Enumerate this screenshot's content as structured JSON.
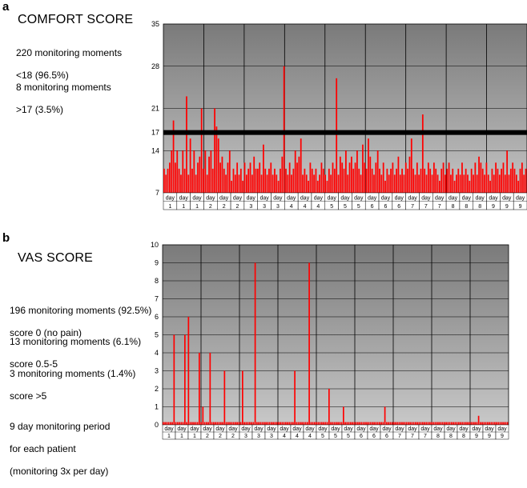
{
  "panel_a": {
    "letter": "a",
    "title": "COMFORT SCORE",
    "stat1_line1": "220 monitoring moments",
    "stat1_line2": "<18 (96.5%)",
    "stat2_line1": "8 monitoring moments",
    "stat2_line2": ">17 (3.5%)"
  },
  "panel_b": {
    "letter": "b",
    "title": "VAS SCORE",
    "stat1_line1": "196 monitoring moments (92.5%)",
    "stat1_line2": "score 0 (no pain)",
    "stat2_line1": "13 monitoring moments (6.1%)",
    "stat2_line2": "score 0.5-5",
    "stat3_line1": "3 monitoring moments (1.4%)",
    "stat3_line2": "score >5",
    "footer_line1": "9 day monitoring period",
    "footer_line2": "for each patient",
    "footer_line3": "(monitoring 3x per day)"
  },
  "chart_data": [
    {
      "type": "bar",
      "title": "COMFORT SCORE",
      "ylim": [
        7,
        35
      ],
      "yticks": [
        7,
        14,
        17,
        21,
        28,
        35
      ],
      "threshold": 17,
      "bar_color": "#ff0000",
      "threshold_color": "#000000",
      "grid": true,
      "day_groups": 9,
      "x_tick_labels": [
        {
          "day": "day",
          "num": "1"
        },
        {
          "day": "day",
          "num": "1"
        },
        {
          "day": "day",
          "num": "1"
        },
        {
          "day": "day",
          "num": "2"
        },
        {
          "day": "day",
          "num": "2"
        },
        {
          "day": "day",
          "num": "2"
        },
        {
          "day": "day",
          "num": "3"
        },
        {
          "day": "day",
          "num": "3"
        },
        {
          "day": "day",
          "num": "3"
        },
        {
          "day": "day",
          "num": "4"
        },
        {
          "day": "day",
          "num": "4"
        },
        {
          "day": "day",
          "num": "4"
        },
        {
          "day": "day",
          "num": "5"
        },
        {
          "day": "day",
          "num": "5"
        },
        {
          "day": "day",
          "num": "5"
        },
        {
          "day": "day",
          "num": "6"
        },
        {
          "day": "day",
          "num": "6"
        },
        {
          "day": "day",
          "num": "6"
        },
        {
          "day": "day",
          "num": "7"
        },
        {
          "day": "day",
          "num": "7"
        },
        {
          "day": "day",
          "num": "7"
        },
        {
          "day": "day",
          "num": "8"
        },
        {
          "day": "day",
          "num": "8"
        },
        {
          "day": "day",
          "num": "8"
        },
        {
          "day": "day",
          "num": "9"
        },
        {
          "day": "day",
          "num": "9"
        },
        {
          "day": "day",
          "num": "9"
        }
      ],
      "values": [
        11,
        10,
        11,
        12,
        14,
        19,
        12,
        14,
        11,
        10,
        14,
        11,
        23,
        10,
        16,
        11,
        14,
        10,
        12,
        13,
        21,
        11,
        14,
        10,
        13,
        14,
        11,
        21,
        18,
        16,
        12,
        13,
        11,
        10,
        12,
        14,
        9,
        11,
        10,
        12,
        10,
        11,
        9,
        12,
        10,
        11,
        12,
        10,
        13,
        11,
        11,
        12,
        10,
        15,
        11,
        10,
        11,
        12,
        10,
        11,
        10,
        9,
        11,
        13,
        28,
        11,
        10,
        12,
        10,
        11,
        14,
        12,
        13,
        16,
        10,
        11,
        10,
        9,
        12,
        11,
        10,
        11,
        9,
        10,
        12,
        11,
        10,
        9,
        11,
        10,
        12,
        11,
        26,
        10,
        13,
        12,
        11,
        14,
        10,
        12,
        13,
        11,
        12,
        14,
        11,
        10,
        15,
        12,
        11,
        16,
        13,
        11,
        10,
        12,
        14,
        11,
        10,
        12,
        9,
        11,
        10,
        11,
        12,
        10,
        11,
        13,
        10,
        11,
        10,
        12,
        11,
        13,
        16,
        11,
        10,
        12,
        10,
        11,
        20,
        11,
        10,
        12,
        11,
        10,
        12,
        11,
        10,
        9,
        11,
        12,
        10,
        11,
        12,
        10,
        11,
        9,
        10,
        11,
        10,
        12,
        10,
        11,
        10,
        9,
        11,
        10,
        12,
        10,
        13,
        12,
        11,
        10,
        12,
        10,
        9,
        11,
        10,
        12,
        11,
        10,
        11,
        12,
        10,
        14,
        10,
        11,
        12,
        11,
        10,
        9,
        11,
        12,
        10,
        11
      ]
    },
    {
      "type": "bar",
      "title": "VAS SCORE",
      "ylim": [
        0,
        10
      ],
      "yticks": [
        0,
        1,
        2,
        3,
        4,
        5,
        6,
        7,
        8,
        9,
        10
      ],
      "bar_color": "#ff0000",
      "grid": true,
      "day_groups": 9,
      "x_tick_labels": [
        {
          "day": "day",
          "num": "1"
        },
        {
          "day": "day",
          "num": "1"
        },
        {
          "day": "day",
          "num": "1"
        },
        {
          "day": "day",
          "num": "2"
        },
        {
          "day": "day",
          "num": "2"
        },
        {
          "day": "day",
          "num": "2"
        },
        {
          "day": "day",
          "num": "3"
        },
        {
          "day": "day",
          "num": "3"
        },
        {
          "day": "day",
          "num": "3"
        },
        {
          "day": "day",
          "num": "4"
        },
        {
          "day": "day",
          "num": "4"
        },
        {
          "day": "day",
          "num": "4"
        },
        {
          "day": "day",
          "num": "5"
        },
        {
          "day": "day",
          "num": "5"
        },
        {
          "day": "day",
          "num": "5"
        },
        {
          "day": "day",
          "num": "6"
        },
        {
          "day": "day",
          "num": "6"
        },
        {
          "day": "day",
          "num": "6"
        },
        {
          "day": "day",
          "num": "7"
        },
        {
          "day": "day",
          "num": "7"
        },
        {
          "day": "day",
          "num": "7"
        },
        {
          "day": "day",
          "num": "8"
        },
        {
          "day": "day",
          "num": "8"
        },
        {
          "day": "day",
          "num": "8"
        },
        {
          "day": "day",
          "num": "9"
        },
        {
          "day": "day",
          "num": "9"
        },
        {
          "day": "day",
          "num": "9"
        }
      ],
      "values": [
        0,
        0,
        0,
        0,
        0,
        0,
        5,
        0,
        0,
        0,
        0,
        0,
        5,
        0,
        6,
        0,
        0,
        0,
        0,
        0,
        4,
        0,
        1,
        0,
        0,
        0,
        4,
        0,
        0,
        0,
        0,
        0,
        0,
        0,
        3,
        0,
        0,
        0,
        0,
        0,
        0,
        0,
        0,
        0,
        3,
        0,
        0,
        0,
        0,
        0,
        0,
        9,
        0,
        0,
        0,
        0,
        0,
        0,
        0,
        0,
        0,
        0,
        0,
        0,
        0,
        0,
        0,
        0,
        0,
        0,
        0,
        0,
        0,
        3,
        0,
        0,
        0,
        0,
        0,
        0,
        0,
        9,
        0,
        0,
        0,
        0,
        0,
        0,
        0,
        0,
        0,
        0,
        2,
        0,
        0,
        0,
        0,
        0,
        0,
        0,
        1,
        0,
        0,
        0,
        0,
        0,
        0,
        0,
        0,
        0,
        0,
        0,
        0,
        0,
        0,
        0,
        0,
        0,
        0,
        0,
        0,
        0,
        0,
        1,
        0,
        0,
        0,
        0,
        0,
        0,
        0,
        0,
        0,
        0,
        0,
        0,
        0,
        0,
        0,
        0,
        0,
        0,
        0,
        0,
        0,
        0,
        0,
        0,
        0,
        0,
        0,
        0,
        0,
        0,
        0,
        0,
        0,
        0,
        0,
        0,
        0,
        0,
        0,
        0,
        0,
        0,
        0,
        0,
        0,
        0,
        0,
        0,
        0,
        0,
        0,
        0.5,
        0,
        0,
        0,
        0,
        0,
        0,
        0,
        0,
        0,
        0,
        0,
        0,
        0,
        0,
        0,
        0
      ]
    }
  ]
}
